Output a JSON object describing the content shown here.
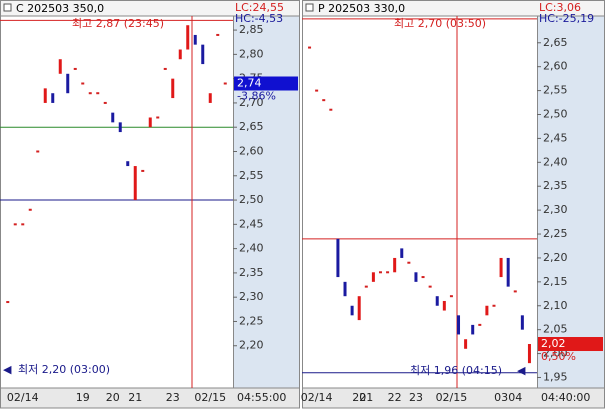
{
  "chart_data": [
    {
      "type": "candlestick",
      "title": "C 202503 350,0",
      "lc": "LC:24,55",
      "hc": "HC:-4,53",
      "high_note": "최고 2,87 (23:45)",
      "low_note": "최저 2,20 (03:00)",
      "last": {
        "value": 2.74,
        "label": "2,74"
      },
      "change_label": "-3,86%",
      "time_label": "04:55:00",
      "ylim": [
        2.113,
        2.879
      ],
      "yticks": [
        {
          "value": 2.2,
          "label": "2,20"
        },
        {
          "value": 2.25,
          "label": "2,25"
        },
        {
          "value": 2.3,
          "label": "2,30"
        },
        {
          "value": 2.35,
          "label": "2,35"
        },
        {
          "value": 2.4,
          "label": "2,40"
        },
        {
          "value": 2.45,
          "label": "2,45"
        },
        {
          "value": 2.5,
          "label": "2,50"
        },
        {
          "value": 2.55,
          "label": "2,55"
        },
        {
          "value": 2.6,
          "label": "2,60"
        },
        {
          "value": 2.65,
          "label": "2,65"
        },
        {
          "value": 2.7,
          "label": "2,70"
        },
        {
          "value": 2.75,
          "label": "2,75"
        },
        {
          "value": 2.8,
          "label": "2,80"
        },
        {
          "value": 2.85,
          "label": "2,85"
        }
      ],
      "hlines": [
        {
          "value": 2.87,
          "color": "#d42020"
        },
        {
          "value": 2.65,
          "color": "#2a8a2a"
        },
        {
          "value": 2.5,
          "color": "#1a1a8a"
        }
      ],
      "categories": [
        null,
        null,
        "02/14",
        null,
        null,
        null,
        null,
        null,
        null,
        null,
        "19",
        null,
        null,
        null,
        "20",
        null,
        null,
        "21",
        null,
        null,
        null,
        null,
        "23",
        null,
        null,
        null,
        null,
        "02/15",
        null,
        null
      ],
      "open": [
        2.29,
        2.45,
        2.45,
        2.48,
        2.6,
        2.7,
        2.72,
        2.76,
        2.76,
        2.77,
        2.74,
        2.72,
        2.72,
        2.7,
        2.68,
        2.66,
        2.58,
        2.5,
        2.56,
        2.65,
        2.67,
        2.77,
        2.71,
        2.79,
        2.81,
        2.84,
        2.82,
        2.7,
        2.84,
        2.74
      ],
      "close": [
        2.29,
        2.45,
        2.45,
        2.48,
        2.6,
        2.73,
        2.7,
        2.79,
        2.72,
        2.77,
        2.74,
        2.72,
        2.72,
        2.7,
        2.66,
        2.64,
        2.57,
        2.57,
        2.56,
        2.67,
        2.67,
        2.77,
        2.75,
        2.81,
        2.86,
        2.82,
        2.78,
        2.72,
        2.84,
        2.74
      ]
    },
    {
      "type": "candlestick",
      "title": "P 202503 330,0",
      "lc": "LC:3,06",
      "hc": "HC:-25,19",
      "high_note": "최고 2,70 (03:50)",
      "low_note": "최저 1,96 (04:15)",
      "last": {
        "value": 2.02,
        "label": "2,02"
      },
      "change_label": "0,50%",
      "time_label": "04:40:00",
      "ylim": [
        1.928,
        2.706
      ],
      "yticks": [
        {
          "value": 1.95,
          "label": "1,95"
        },
        {
          "value": 2.0,
          "label": "2,00"
        },
        {
          "value": 2.05,
          "label": "2,05"
        },
        {
          "value": 2.1,
          "label": "2,10"
        },
        {
          "value": 2.15,
          "label": "2,15"
        },
        {
          "value": 2.2,
          "label": "2,20"
        },
        {
          "value": 2.25,
          "label": "2,25"
        },
        {
          "value": 2.3,
          "label": "2,30"
        },
        {
          "value": 2.35,
          "label": "2,35"
        },
        {
          "value": 2.4,
          "label": "2,40"
        },
        {
          "value": 2.45,
          "label": "2,45"
        },
        {
          "value": 2.5,
          "label": "2,50"
        },
        {
          "value": 2.55,
          "label": "2,55"
        },
        {
          "value": 2.6,
          "label": "2,60"
        },
        {
          "value": 2.65,
          "label": "2,65"
        }
      ],
      "hlines": [
        {
          "value": 2.7,
          "color": "#d42020"
        },
        {
          "value": 2.24,
          "color": "#d42020"
        },
        {
          "value": 1.96,
          "color": "#1a1a8a"
        }
      ],
      "categories": [
        null,
        "02/14",
        null,
        null,
        null,
        null,
        null,
        "20",
        "21",
        null,
        null,
        null,
        "22",
        null,
        null,
        "23",
        null,
        null,
        null,
        null,
        "02/15",
        null,
        null,
        null,
        null,
        null,
        null,
        "03",
        null,
        "04",
        null,
        null
      ],
      "open": [
        2.64,
        2.55,
        2.53,
        2.51,
        2.24,
        2.15,
        2.1,
        2.07,
        2.14,
        2.15,
        2.17,
        2.17,
        2.17,
        2.22,
        2.19,
        2.17,
        2.16,
        2.14,
        2.12,
        2.09,
        2.12,
        2.08,
        2.01,
        2.06,
        2.06,
        2.08,
        2.1,
        2.16,
        2.2,
        2.13,
        2.08,
        1.98
      ],
      "close": [
        2.64,
        2.55,
        2.53,
        2.51,
        2.16,
        2.12,
        2.08,
        2.12,
        2.14,
        2.17,
        2.17,
        2.17,
        2.2,
        2.2,
        2.19,
        2.15,
        2.16,
        2.14,
        2.1,
        2.11,
        2.12,
        2.04,
        2.03,
        2.04,
        2.06,
        2.1,
        2.1,
        2.2,
        2.14,
        2.13,
        2.05,
        2.02
      ]
    }
  ]
}
